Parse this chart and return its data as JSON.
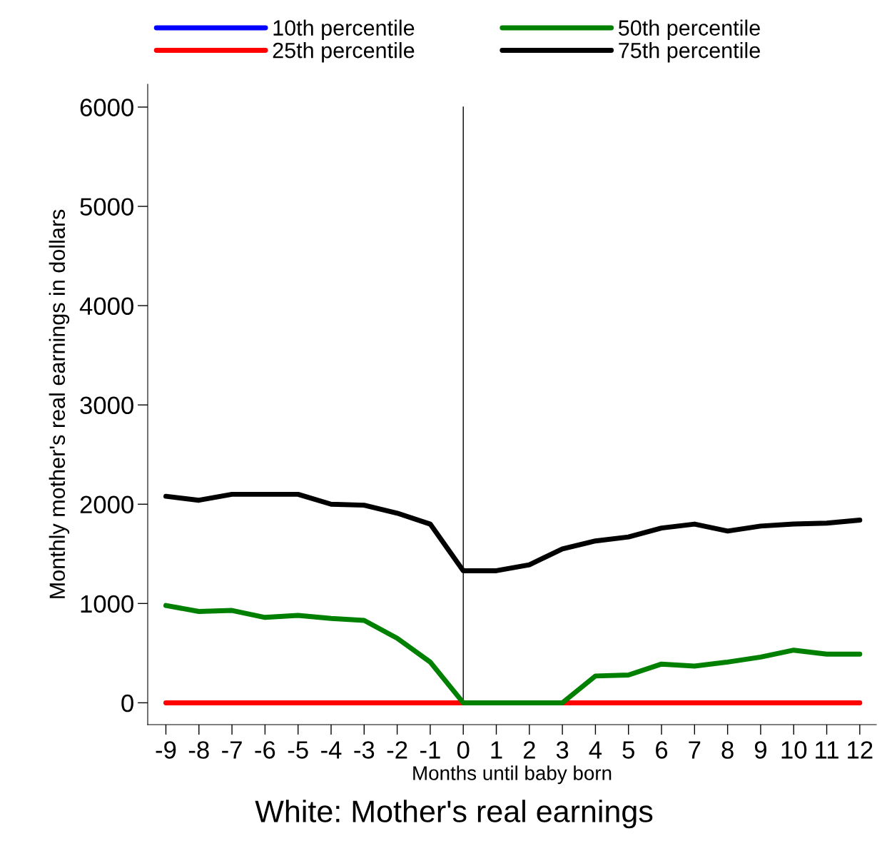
{
  "chart_data": {
    "type": "line",
    "title": "White: Mother's real earnings",
    "xlabel": "Months until baby born",
    "ylabel": "Monthly mother's real earnings in dollars",
    "x": [
      -9,
      -8,
      -7,
      -6,
      -5,
      -4,
      -3,
      -2,
      -1,
      0,
      1,
      2,
      3,
      4,
      5,
      6,
      7,
      8,
      9,
      10,
      11,
      12
    ],
    "series": [
      {
        "name": "10th percentile",
        "color": "#0000ff",
        "values": [
          null,
          null,
          null,
          null,
          null,
          null,
          null,
          null,
          null,
          null,
          null,
          null,
          null,
          null,
          null,
          null,
          null,
          null,
          null,
          null,
          null,
          null
        ]
      },
      {
        "name": "25th percentile",
        "color": "#ff0000",
        "values": [
          0,
          0,
          0,
          0,
          0,
          0,
          0,
          0,
          0,
          0,
          0,
          0,
          0,
          0,
          0,
          0,
          0,
          0,
          0,
          0,
          0,
          0
        ]
      },
      {
        "name": "50th percentile",
        "color": "#008000",
        "values": [
          980,
          920,
          930,
          860,
          880,
          850,
          830,
          650,
          410,
          0,
          0,
          0,
          0,
          270,
          280,
          390,
          370,
          410,
          460,
          530,
          490,
          490
        ]
      },
      {
        "name": "75th percentile",
        "color": "#000000",
        "values": [
          2080,
          2040,
          2100,
          2100,
          2100,
          2000,
          1990,
          1910,
          1800,
          1330,
          1330,
          1390,
          1550,
          1630,
          1670,
          1760,
          1800,
          1730,
          1780,
          1800,
          1810,
          1840
        ]
      }
    ],
    "xlim": [
      -9.55,
      12.5
    ],
    "ylim": [
      -220,
      6230
    ],
    "xticks": [
      -9,
      -8,
      -7,
      -6,
      -5,
      -4,
      -3,
      -2,
      -1,
      0,
      1,
      2,
      3,
      4,
      5,
      6,
      7,
      8,
      9,
      10,
      11,
      12
    ],
    "yticks": [
      0,
      1000,
      2000,
      3000,
      4000,
      5000,
      6000
    ],
    "ref_lines": [
      {
        "axis": "x",
        "value": 0,
        "color": "#000000"
      }
    ],
    "grid": false,
    "legend": "top"
  }
}
